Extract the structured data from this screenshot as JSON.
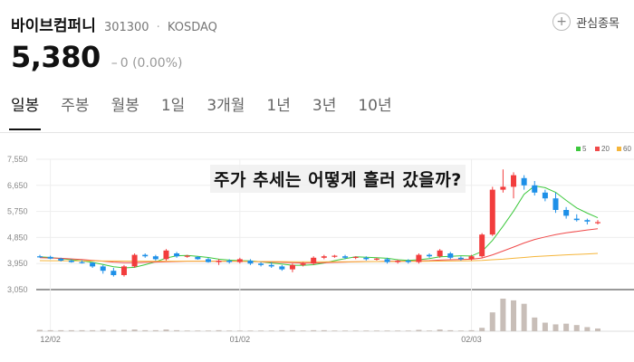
{
  "stock": {
    "name": "바이브컴퍼니",
    "code": "301300",
    "separator": "·",
    "market": "KOSDAQ",
    "price": "5,380",
    "change": "0 (0.00%)",
    "change_icon": "dash-icon"
  },
  "watchlist": {
    "label": "관심종목",
    "icon": "plus-circle-icon"
  },
  "tabs": [
    "일봉",
    "주봉",
    "월봉",
    "1일",
    "3개월",
    "1년",
    "3년",
    "10년"
  ],
  "overlay_caption": "주가 추세는 어떻게 흘러 갔을까?",
  "colors": {
    "up": "#f23d3d",
    "down": "#1e90e8",
    "ma5": "#3cc83c",
    "ma20": "#f04a4a",
    "ma60": "#f5b53a",
    "volume": "#c8beb8"
  },
  "chart_data": {
    "type": "candlestick",
    "y_ticks": [
      "7,550",
      "6,650",
      "5,750",
      "4,850",
      "3,950",
      "3,050"
    ],
    "ylim": [
      3050,
      7550
    ],
    "x_ticks": [
      "12/02",
      "01/02",
      "02/03"
    ],
    "legend": [
      "5",
      "20",
      "60"
    ],
    "legend_placement": "top-right",
    "grid": true,
    "candles": [
      [
        4200,
        4250,
        4150,
        4180
      ],
      [
        4180,
        4220,
        4100,
        4120
      ],
      [
        4120,
        4150,
        4020,
        4050
      ],
      [
        4050,
        4100,
        3980,
        4000
      ],
      [
        4000,
        4060,
        3950,
        3980
      ],
      [
        3980,
        4000,
        3800,
        3850
      ],
      [
        3850,
        3900,
        3600,
        3700
      ],
      [
        3700,
        3800,
        3500,
        3550
      ],
      [
        3550,
        3900,
        3500,
        3850
      ],
      [
        3850,
        4300,
        3800,
        4250
      ],
      [
        4250,
        4300,
        4150,
        4200
      ],
      [
        4200,
        4250,
        4050,
        4100
      ],
      [
        4100,
        4450,
        4050,
        4400
      ],
      [
        4300,
        4350,
        4150,
        4200
      ],
      [
        4200,
        4250,
        4150,
        4220
      ],
      [
        4180,
        4200,
        4080,
        4100
      ],
      [
        4100,
        4150,
        3980,
        4000
      ],
      [
        4000,
        4100,
        3900,
        4050
      ],
      [
        4050,
        4100,
        3950,
        4000
      ],
      [
        4000,
        4150,
        3950,
        4100
      ],
      [
        4050,
        4100,
        3900,
        3950
      ],
      [
        3950,
        4000,
        3850,
        3900
      ],
      [
        3900,
        4000,
        3800,
        3850
      ],
      [
        3850,
        3900,
        3700,
        3750
      ],
      [
        3750,
        3950,
        3650,
        3900
      ],
      [
        3900,
        4000,
        3850,
        3950
      ],
      [
        3950,
        4200,
        3900,
        4150
      ],
      [
        4150,
        4250,
        4100,
        4200
      ],
      [
        4200,
        4250,
        4150,
        4220
      ],
      [
        4200,
        4250,
        4100,
        4150
      ],
      [
        4150,
        4200,
        4100,
        4180
      ],
      [
        4150,
        4200,
        4050,
        4100
      ],
      [
        4100,
        4150,
        4050,
        4120
      ],
      [
        4100,
        4150,
        3950,
        4000
      ],
      [
        4000,
        4080,
        3950,
        4050
      ],
      [
        4050,
        4100,
        3950,
        4000
      ],
      [
        4000,
        4300,
        3950,
        4250
      ],
      [
        4250,
        4300,
        4150,
        4200
      ],
      [
        4200,
        4450,
        4150,
        4400
      ],
      [
        4300,
        4350,
        4100,
        4150
      ],
      [
        4150,
        4200,
        4050,
        4100
      ],
      [
        4100,
        4250,
        4050,
        4200
      ],
      [
        4200,
        5000,
        4150,
        4950
      ],
      [
        4950,
        6600,
        4900,
        6500
      ],
      [
        6500,
        7200,
        6400,
        6600
      ],
      [
        6600,
        7100,
        6200,
        7000
      ],
      [
        6900,
        7000,
        6500,
        6650
      ],
      [
        6650,
        6800,
        6300,
        6400
      ],
      [
        6400,
        6500,
        6100,
        6200
      ],
      [
        6200,
        6400,
        5700,
        5800
      ],
      [
        5800,
        5900,
        5500,
        5600
      ],
      [
        5500,
        5650,
        5400,
        5450
      ],
      [
        5450,
        5500,
        5300,
        5400
      ],
      [
        5380,
        5450,
        5300,
        5380
      ]
    ],
    "ma5": [
      4180,
      4160,
      4120,
      4080,
      4040,
      3990,
      3920,
      3840,
      3800,
      3820,
      3910,
      4010,
      4140,
      4220,
      4230,
      4200,
      4160,
      4100,
      4070,
      4050,
      4040,
      4010,
      3970,
      3930,
      3890,
      3890,
      3910,
      3970,
      4050,
      4120,
      4180,
      4170,
      4150,
      4130,
      4080,
      4060,
      4080,
      4120,
      4180,
      4200,
      4220,
      4210,
      4370,
      4750,
      5240,
      5760,
      6340,
      6630,
      6570,
      6410,
      6130,
      5870,
      5690,
      5530
    ],
    "ma20": [
      4150,
      4140,
      4130,
      4110,
      4090,
      4060,
      4030,
      4000,
      3980,
      3980,
      3990,
      4000,
      4010,
      4020,
      4030,
      4030,
      4030,
      4030,
      4030,
      4030,
      4020,
      4010,
      4000,
      3990,
      3980,
      3970,
      3970,
      3980,
      3990,
      4000,
      4010,
      4020,
      4020,
      4030,
      4030,
      4030,
      4040,
      4050,
      4070,
      4080,
      4090,
      4100,
      4140,
      4250,
      4380,
      4520,
      4660,
      4780,
      4870,
      4950,
      5010,
      5060,
      5110,
      5150
    ],
    "ma60": [
      4050,
      4048,
      4046,
      4044,
      4042,
      4040,
      4038,
      4036,
      4034,
      4032,
      4030,
      4030,
      4030,
      4030,
      4030,
      4030,
      4030,
      4028,
      4026,
      4024,
      4022,
      4020,
      4018,
      4016,
      4014,
      4012,
      4010,
      4010,
      4010,
      4012,
      4014,
      4016,
      4018,
      4020,
      4022,
      4024,
      4026,
      4030,
      4034,
      4038,
      4042,
      4046,
      4060,
      4080,
      4100,
      4130,
      4160,
      4190,
      4210,
      4230,
      4250,
      4265,
      4280,
      4300
    ],
    "volume": [
      4,
      3,
      3,
      3,
      3,
      3,
      4,
      4,
      4,
      5,
      3,
      3,
      5,
      3,
      2,
      2,
      2,
      3,
      2,
      2,
      2,
      2,
      2,
      3,
      3,
      2,
      3,
      3,
      2,
      2,
      2,
      2,
      2,
      2,
      2,
      2,
      4,
      2,
      5,
      3,
      2,
      3,
      10,
      55,
      95,
      90,
      80,
      40,
      25,
      20,
      22,
      18,
      12,
      8
    ]
  }
}
